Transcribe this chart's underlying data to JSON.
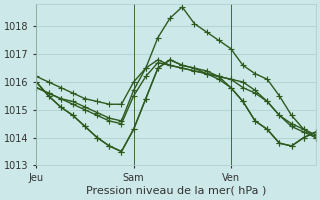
{
  "xlabel": "Pression niveau de la mer( hPa )",
  "background_color": "#cce8e8",
  "grid_color": "#aacccc",
  "line_color": "#2d5a1e",
  "marker": "+",
  "markersize": 4,
  "linewidth": 1.0,
  "ylim": [
    1013.0,
    1018.8
  ],
  "yticks": [
    1013,
    1014,
    1015,
    1016,
    1017,
    1018
  ],
  "xtick_labels": [
    "Jeu",
    "Sam",
    "Ven"
  ],
  "xtick_positions": [
    0,
    8,
    16
  ],
  "vline_positions": [
    0,
    8,
    16
  ],
  "xlabel_fontsize": 8,
  "tick_fontsize": 7,
  "series": [
    [
      1016.2,
      1016.0,
      1015.8,
      1015.6,
      1015.4,
      1015.3,
      1015.2,
      1015.2,
      1016.0,
      1016.5,
      1017.6,
      1018.3,
      1018.7,
      1018.1,
      1017.8,
      1017.5,
      1017.2,
      1016.6,
      1016.3,
      1016.1,
      1015.5,
      1014.8,
      1014.3,
      1014.0
    ],
    [
      1015.8,
      1015.6,
      1015.4,
      1015.3,
      1015.1,
      1014.9,
      1014.7,
      1014.6,
      1015.7,
      1016.5,
      1016.8,
      1016.6,
      1016.5,
      1016.4,
      1016.3,
      1016.2,
      1016.1,
      1015.8,
      1015.6,
      1015.3,
      1014.8,
      1014.4,
      1014.2,
      1014.0
    ],
    [
      1015.8,
      1015.6,
      1015.4,
      1015.2,
      1015.0,
      1014.8,
      1014.6,
      1014.5,
      1015.5,
      1016.2,
      1016.7,
      1016.6,
      1016.5,
      1016.4,
      1016.3,
      1016.2,
      1016.1,
      1016.0,
      1015.7,
      1015.3,
      1014.8,
      1014.5,
      1014.3,
      1014.1
    ],
    [
      1016.0,
      1015.5,
      1015.1,
      1014.8,
      1014.4,
      1014.0,
      1013.7,
      1013.5,
      1014.3,
      1015.4,
      1016.5,
      1016.8,
      1016.6,
      1016.5,
      1016.4,
      1016.2,
      1015.8,
      1015.3,
      1014.6,
      1014.3,
      1013.8,
      1013.7,
      1014.0,
      1014.2
    ],
    [
      1016.0,
      1015.5,
      1015.1,
      1014.8,
      1014.4,
      1014.0,
      1013.7,
      1013.5,
      1014.3,
      1015.4,
      1016.5,
      1016.8,
      1016.6,
      1016.5,
      1016.3,
      1016.1,
      1015.8,
      1015.3,
      1014.6,
      1014.3,
      1013.8,
      1013.7,
      1014.0,
      1014.2
    ]
  ]
}
